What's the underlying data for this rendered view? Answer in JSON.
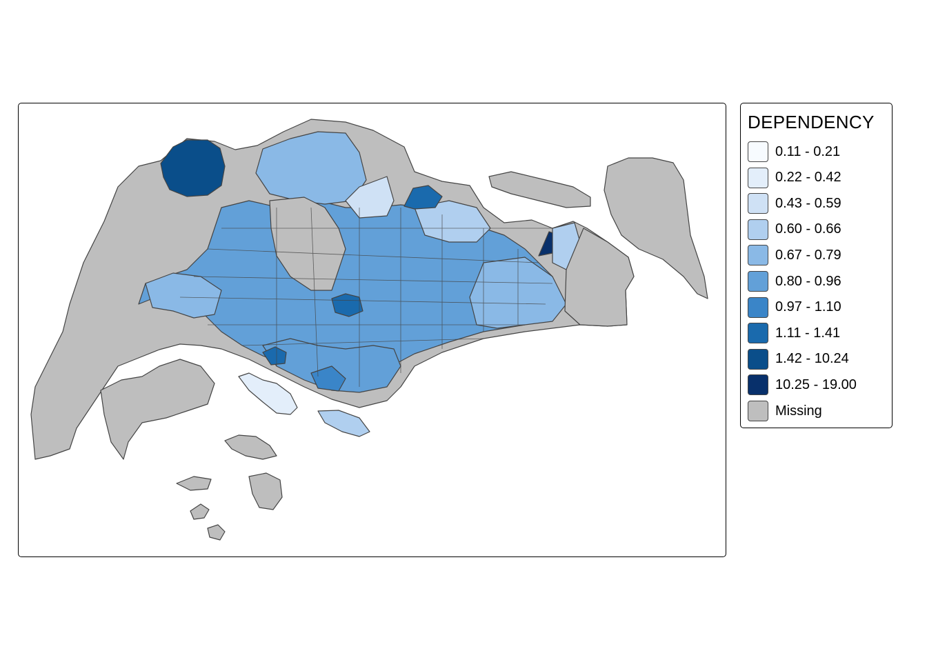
{
  "legend": {
    "title": "DEPENDENCY",
    "items": [
      {
        "label": "0.11 - 0.21",
        "color": "#f7fbff"
      },
      {
        "label": "0.22 - 0.42",
        "color": "#e3eefa"
      },
      {
        "label": "0.43 - 0.59",
        "color": "#cfe1f5"
      },
      {
        "label": "0.60 - 0.66",
        "color": "#b0cfef"
      },
      {
        "label": "0.67 - 0.79",
        "color": "#8ab9e6"
      },
      {
        "label": "0.80 - 0.96",
        "color": "#62a0d8"
      },
      {
        "label": "0.97 - 1.10",
        "color": "#3a85c8"
      },
      {
        "label": "1.11 - 1.41",
        "color": "#1a6aad"
      },
      {
        "label": "1.42 - 10.24",
        "color": "#0a4e8a"
      },
      {
        "label": "10.25 - 19.00",
        "color": "#08306b"
      },
      {
        "label": "Missing",
        "color": "#bebebe"
      }
    ]
  },
  "map": {
    "missing_color": "#bebebe",
    "border_color": "#444444"
  }
}
